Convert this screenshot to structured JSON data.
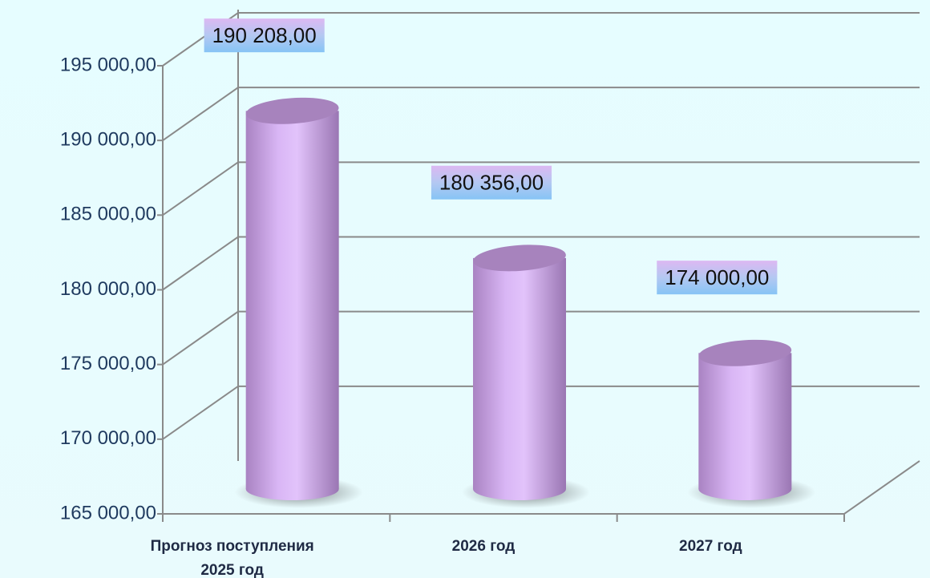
{
  "chart_data": {
    "type": "bar",
    "categories": [
      "Прогноз поступления 2025 год",
      "2026 год",
      "2027 год"
    ],
    "values": [
      190208,
      180356,
      174000
    ],
    "value_labels": [
      "190 208,00",
      "180 356,00",
      "174 000,00"
    ],
    "color": "#d8b4f4",
    "ylim": [
      165000,
      195000
    ],
    "yticks": [
      {
        "value": 165000,
        "label": "165 000,00"
      },
      {
        "value": 170000,
        "label": "170 000,00"
      },
      {
        "value": 175000,
        "label": "175 000,00"
      },
      {
        "value": 180000,
        "label": "180 000,00"
      },
      {
        "value": 185000,
        "label": "185 000,00"
      },
      {
        "value": 190000,
        "label": "190 000,00"
      },
      {
        "value": 195000,
        "label": "195 000,00"
      }
    ],
    "grid": true
  }
}
